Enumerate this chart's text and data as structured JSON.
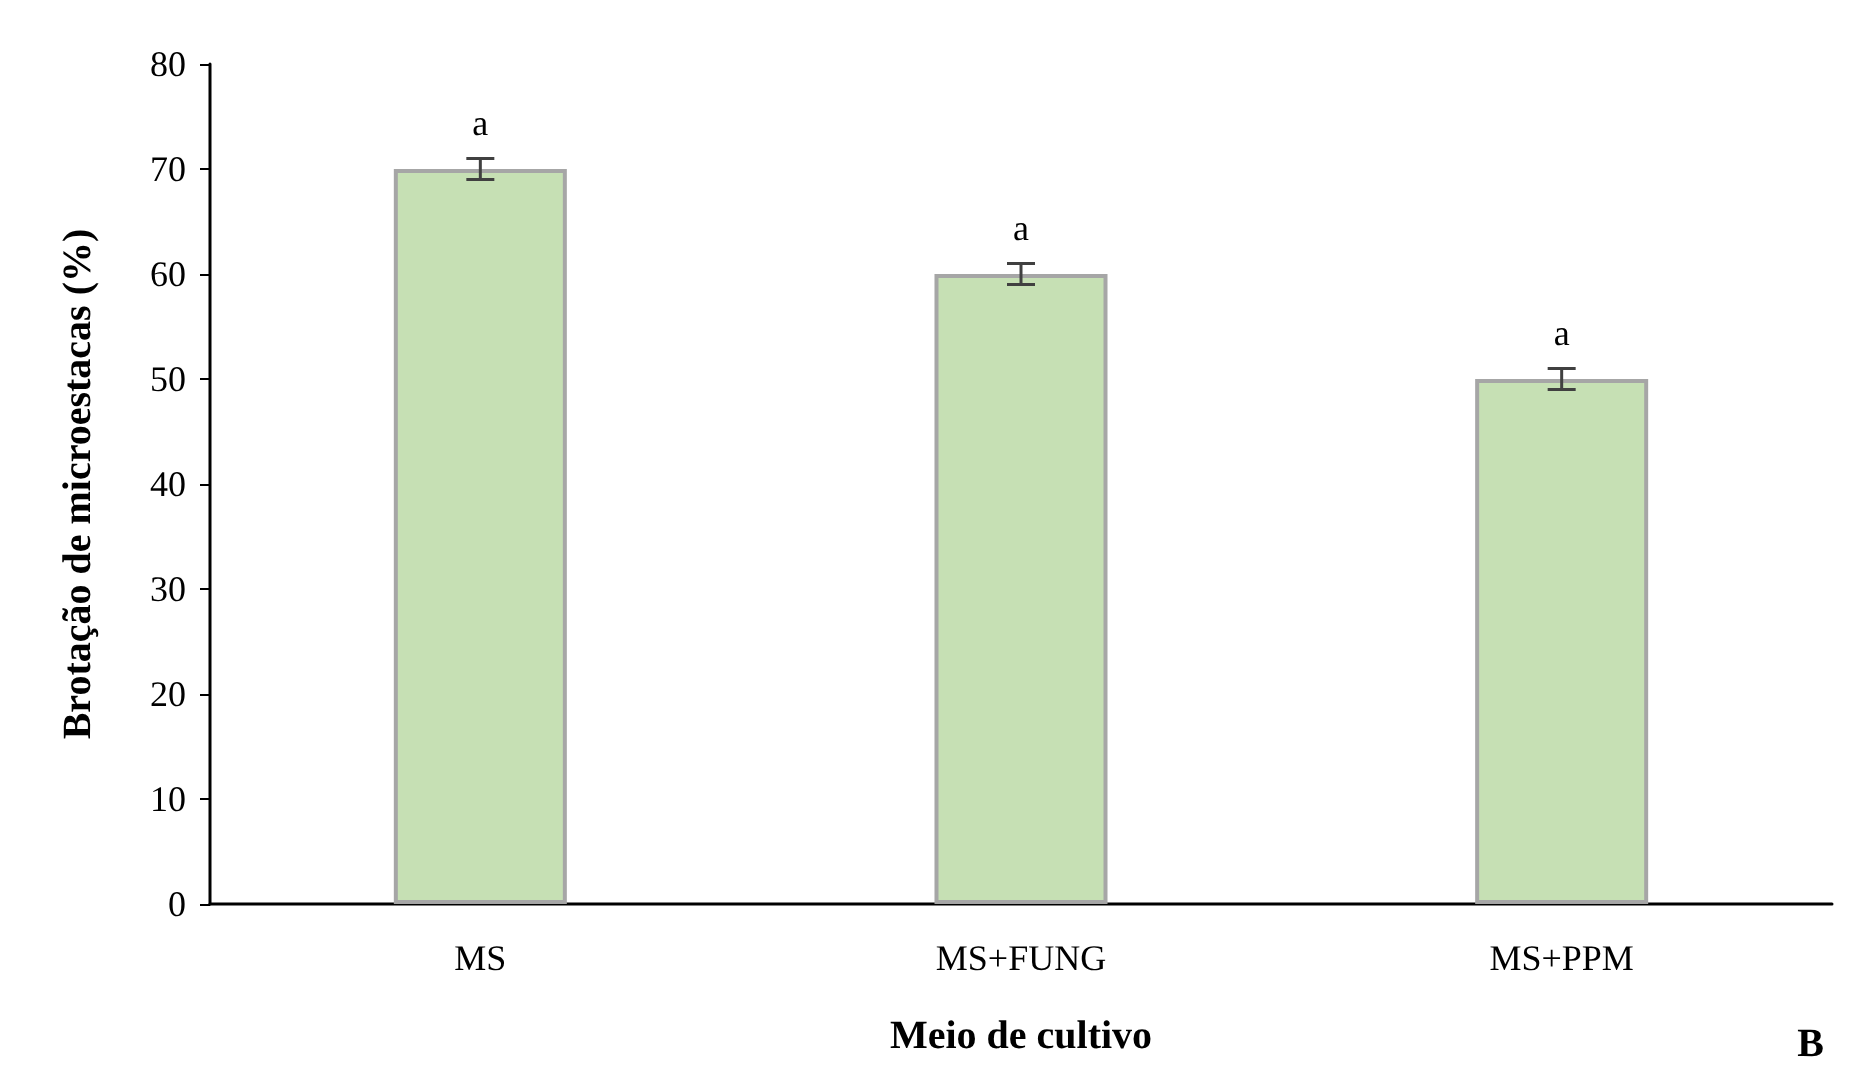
{
  "chart_data": {
    "type": "bar",
    "xlabel": "Meio de cultivo",
    "ylabel": "Brotação de microestacas (%)",
    "categories": [
      "MS",
      "MS+FUNG",
      "MS+PPM"
    ],
    "values": [
      70,
      60,
      50
    ],
    "errors": [
      1,
      1,
      1
    ],
    "value_labels": [
      "a",
      "a",
      "a"
    ],
    "color": "#c6e0b4",
    "ylim": [
      0,
      80
    ],
    "yticks": [
      0,
      10,
      20,
      30,
      40,
      50,
      60,
      70,
      80
    ],
    "grid": false,
    "annotations": [
      "B"
    ]
  }
}
